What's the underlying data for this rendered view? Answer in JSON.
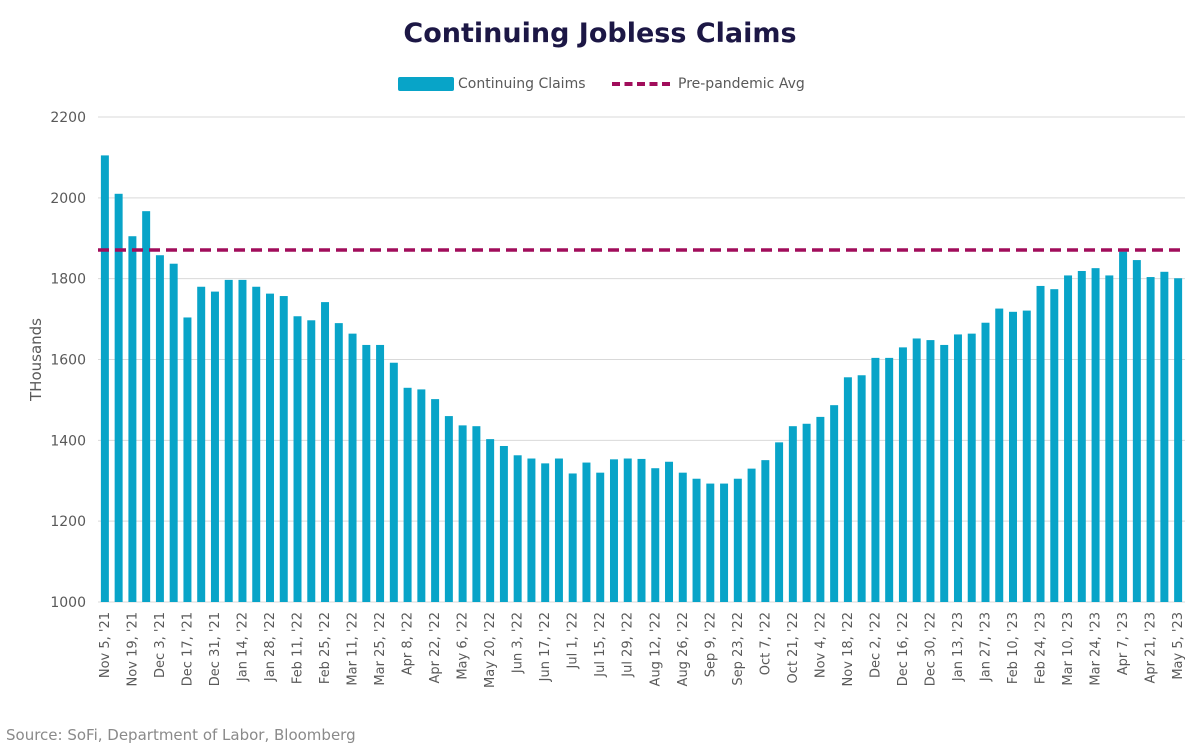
{
  "source": "Source: SoFi, Department of Labor, Bloomberg",
  "colors": {
    "bar": "#08a4c8",
    "avg_line": "#a10d5b",
    "title": "#1c1745",
    "grid": "#d9d9d9"
  },
  "chart_data": {
    "type": "bar",
    "title": "Continuing Jobless Claims",
    "ylabel": "THousands",
    "xlabel": "",
    "ylim": [
      1000,
      2200
    ],
    "yticks": [
      1000,
      1200,
      1400,
      1600,
      1800,
      2000,
      2200
    ],
    "grid": true,
    "legend_position": "top",
    "legend": [
      "Continuing Claims",
      "Pre-pandemic Avg"
    ],
    "x_tick_labels": [
      "Nov 5, '21",
      "Nov 19, '21",
      "Dec 3, '21",
      "Dec 17, '21",
      "Dec 31, '21",
      "Jan 14, '22",
      "Jan 28, '22",
      "Feb 11, '22",
      "Feb 25, '22",
      "Mar 11, '22",
      "Mar 25, '22",
      "Apr 8, '22",
      "Apr 22, '22",
      "May 6, '22",
      "May 20, '22",
      "Jun 3, '22",
      "Jun 17, '22",
      "Jul 1, '22",
      "Jul 15, '22",
      "Jul 29, '22",
      "Aug 12, '22",
      "Aug 26, '22",
      "Sep 9, '22",
      "Sep 23, '22",
      "Oct 7, '22",
      "Oct 21, '22",
      "Nov 4, '22",
      "Nov 18, '22",
      "Dec 2, '22",
      "Dec 16, '22",
      "Dec 30, '22",
      "Jan 13, '23",
      "Jan 27, '23",
      "Feb 10, '23",
      "Feb 24, '23",
      "Mar 10, '23",
      "Mar 24, '23",
      "Apr 7, '23",
      "Apr 21, '23",
      "May 5, '23"
    ],
    "series": [
      {
        "name": "Continuing Claims",
        "values": [
          2105,
          2010,
          1905,
          1967,
          1858,
          1837,
          1704,
          1780,
          1768,
          1797,
          1797,
          1780,
          1763,
          1757,
          1707,
          1697,
          1742,
          1690,
          1664,
          1636,
          1636,
          1592,
          1530,
          1526,
          1502,
          1460,
          1437,
          1435,
          1403,
          1386,
          1363,
          1355,
          1343,
          1355,
          1318,
          1345,
          1320,
          1353,
          1355,
          1354,
          1331,
          1347,
          1320,
          1305,
          1293,
          1293,
          1305,
          1330,
          1351,
          1395,
          1435,
          1441,
          1458,
          1487,
          1556,
          1561,
          1604,
          1604,
          1630,
          1652,
          1648,
          1636,
          1662,
          1664,
          1691,
          1726,
          1718,
          1721,
          1782,
          1774,
          1808,
          1819,
          1826,
          1808,
          1867,
          1846,
          1804,
          1817,
          1801
        ]
      },
      {
        "name": "Pre-pandemic Avg",
        "value": 1871
      }
    ]
  }
}
